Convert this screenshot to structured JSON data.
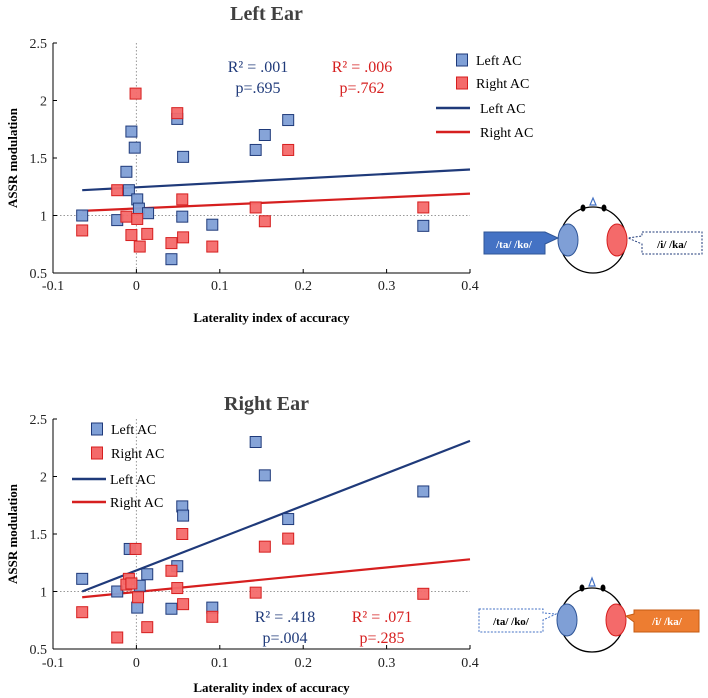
{
  "colors": {
    "left_ac": "#1f3a7a",
    "left_fill": "#7f9fd6",
    "right_ac": "#d61f1f",
    "right_fill": "#f46a6a",
    "orange": "#ed7d31",
    "bubble_blue": "#4472c4"
  },
  "chart_data": [
    {
      "type": "scatter",
      "title": "Left Ear",
      "xlabel": "Laterality index of accuracy",
      "ylabel": "ASSR modulation",
      "xlim": [
        -0.1,
        0.4
      ],
      "ylim": [
        0.5,
        2.5
      ],
      "xticks": [
        "-0.1",
        "0",
        "0.1",
        "0.2",
        "0.3",
        "0.4"
      ],
      "yticks": [
        "0.5",
        "1",
        "1.5",
        "2",
        "2.5"
      ],
      "legend": {
        "placement": "top-right",
        "markers": [
          "Left AC",
          "Right AC"
        ],
        "lines": [
          "Left AC",
          "Right AC"
        ]
      },
      "stats": [
        {
          "r2": "R² = .001",
          "p": "p=.695"
        },
        {
          "r2": "R² = .006",
          "p": "p=.762"
        }
      ],
      "series": [
        {
          "name": "Left AC",
          "points": [
            [
              -0.065,
              1.0
            ],
            [
              -0.006,
              1.73
            ],
            [
              -0.002,
              1.59
            ],
            [
              -0.012,
              1.38
            ],
            [
              -0.009,
              1.22
            ],
            [
              0.001,
              1.14
            ],
            [
              0.003,
              1.06
            ],
            [
              0.014,
              1.02
            ],
            [
              -0.023,
              0.96
            ],
            [
              0.049,
              1.84
            ],
            [
              0.056,
              1.51
            ],
            [
              0.055,
              0.99
            ],
            [
              0.042,
              0.62
            ],
            [
              0.091,
              0.92
            ],
            [
              0.143,
              1.57
            ],
            [
              0.154,
              1.7
            ],
            [
              0.182,
              1.83
            ],
            [
              0.344,
              0.91
            ]
          ],
          "fit": [
            [
              -0.065,
              1.22
            ],
            [
              0.4,
              1.4
            ]
          ]
        },
        {
          "name": "Right AC",
          "points": [
            [
              -0.001,
              2.06
            ],
            [
              0.049,
              1.89
            ],
            [
              0.182,
              1.57
            ],
            [
              0.055,
              1.14
            ],
            [
              -0.023,
              1.22
            ],
            [
              -0.012,
              0.99
            ],
            [
              0.001,
              0.97
            ],
            [
              -0.065,
              0.87
            ],
            [
              -0.006,
              0.83
            ],
            [
              0.013,
              0.84
            ],
            [
              0.004,
              0.73
            ],
            [
              0.042,
              0.76
            ],
            [
              0.056,
              0.81
            ],
            [
              0.091,
              0.73
            ],
            [
              0.143,
              1.07
            ],
            [
              0.154,
              0.95
            ],
            [
              0.344,
              1.07
            ]
          ],
          "fit": [
            [
              -0.065,
              1.04
            ],
            [
              0.4,
              1.19
            ]
          ]
        }
      ]
    },
    {
      "type": "scatter",
      "title": "Right Ear",
      "xlabel": "Laterality index of accuracy",
      "ylabel": "ASSR modulation",
      "xlim": [
        -0.1,
        0.4
      ],
      "ylim": [
        0.5,
        2.5
      ],
      "xticks": [
        "-0.1",
        "0",
        "0.1",
        "0.2",
        "0.3",
        "0.4"
      ],
      "yticks": [
        "0.5",
        "1",
        "1.5",
        "2",
        "2.5"
      ],
      "legend": {
        "placement": "top-left",
        "markers": [
          "Left AC",
          "Right AC"
        ],
        "lines": [
          "Left AC",
          "Right AC"
        ]
      },
      "stats": [
        {
          "r2": "R² = .418",
          "p": "p=.004"
        },
        {
          "r2": "R² = .071",
          "p": "p=.285"
        }
      ],
      "series": [
        {
          "name": "Left AC",
          "points": [
            [
              -0.065,
              1.11
            ],
            [
              0.143,
              2.3
            ],
            [
              0.154,
              2.01
            ],
            [
              0.344,
              1.87
            ],
            [
              0.055,
              1.74
            ],
            [
              0.056,
              1.66
            ],
            [
              0.182,
              1.63
            ],
            [
              -0.008,
              1.37
            ],
            [
              0.049,
              1.22
            ],
            [
              0.013,
              1.15
            ],
            [
              0.004,
              1.05
            ],
            [
              -0.023,
              1.0
            ],
            [
              0.001,
              0.86
            ],
            [
              0.042,
              0.85
            ],
            [
              0.091,
              0.86
            ]
          ],
          "fit": [
            [
              -0.065,
              1.0
            ],
            [
              0.4,
              2.31
            ]
          ]
        },
        {
          "name": "Right AC",
          "points": [
            [
              -0.001,
              1.37
            ],
            [
              0.055,
              1.5
            ],
            [
              0.154,
              1.39
            ],
            [
              0.182,
              1.46
            ],
            [
              0.042,
              1.18
            ],
            [
              0.049,
              1.03
            ],
            [
              -0.009,
              1.11
            ],
            [
              -0.012,
              1.06
            ],
            [
              -0.006,
              1.07
            ],
            [
              0.002,
              0.95
            ],
            [
              -0.065,
              0.82
            ],
            [
              0.056,
              0.89
            ],
            [
              0.091,
              0.78
            ],
            [
              0.143,
              0.99
            ],
            [
              0.344,
              0.98
            ],
            [
              0.013,
              0.69
            ],
            [
              -0.023,
              0.6
            ]
          ],
          "fit": [
            [
              -0.065,
              0.95
            ],
            [
              0.4,
              1.28
            ]
          ]
        }
      ]
    }
  ],
  "diagrams": [
    {
      "left_bubble": "/ta/ /ko/",
      "right_bubble": "/i/ /ka/"
    },
    {
      "left_bubble": "/ta/ /ko/",
      "right_bubble": "/i/ /ka/"
    }
  ]
}
